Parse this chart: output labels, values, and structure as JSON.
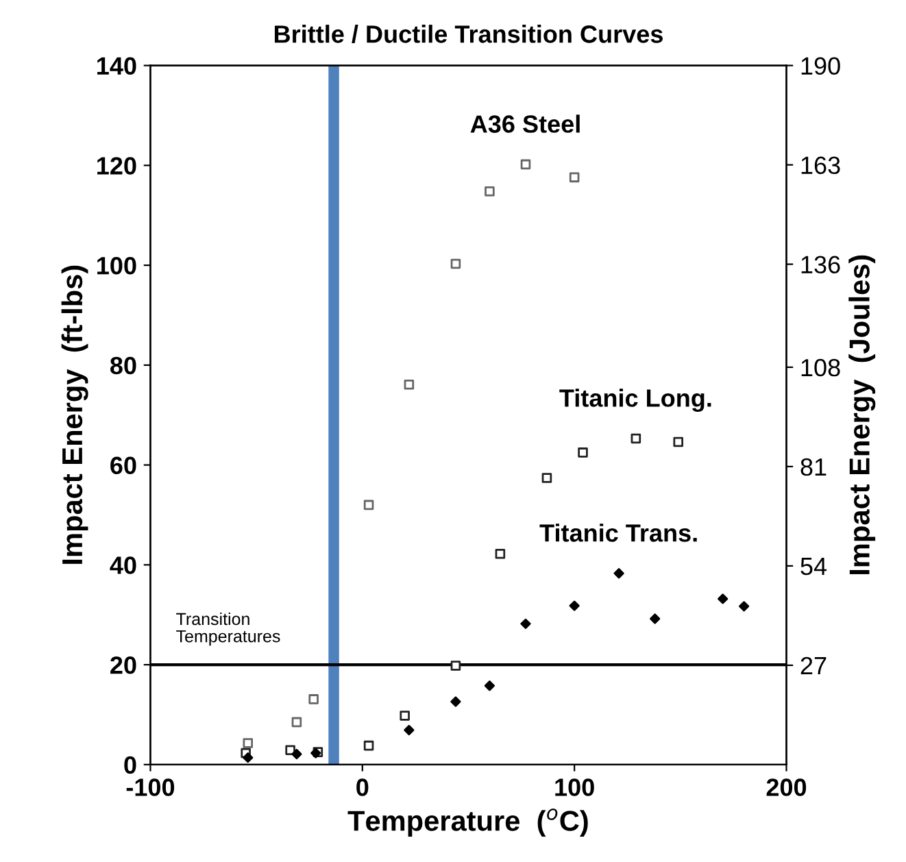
{
  "chart_data": {
    "type": "scatter",
    "title": "Brittle / Ductile Transition Curves",
    "xlabel": "Temperature  ($^{o}$C)",
    "ylabel": "Impact Energy  (ft-lbs)",
    "y2label": "Impact Energy  (Joules)",
    "xlim": [
      -100,
      200
    ],
    "xticks": [
      -100,
      0,
      100,
      200
    ],
    "ylim": [
      0,
      140
    ],
    "yticks": [
      0,
      20,
      40,
      60,
      80,
      100,
      120,
      140
    ],
    "y2lim": [
      0,
      190
    ],
    "y2ticks": [
      27,
      54,
      81,
      108,
      136,
      163,
      190
    ],
    "grid": false,
    "legend": false,
    "series": [
      {
        "name": "A36 Steel",
        "color": "#666666",
        "marker": "square",
        "x": [
          -54,
          -31,
          -23,
          3,
          22,
          44,
          60,
          77,
          100
        ],
        "values": [
          4.3,
          8.5,
          13.1,
          52,
          76.1,
          100.3,
          114.8,
          120.2,
          117.6
        ]
      },
      {
        "name": "Titanic Long.",
        "color": "#222222",
        "marker": "square",
        "x": [
          -55,
          -34,
          -21,
          3,
          20,
          44,
          65,
          87,
          104,
          129,
          149
        ],
        "values": [
          2.3,
          2.9,
          2.5,
          3.8,
          9.8,
          19.8,
          42.2,
          57.4,
          62.5,
          65.3,
          64.6
        ]
      },
      {
        "name": "Titanic Trans.",
        "color": "#000000",
        "marker": "diamond",
        "x": [
          -54,
          -31,
          -22,
          22,
          44,
          60,
          77,
          100,
          121,
          138,
          170,
          180
        ],
        "values": [
          1.4,
          2.1,
          2.3,
          6.9,
          12.6,
          15.8,
          28.2,
          31.8,
          38.3,
          29.2,
          33.2,
          31.7
        ]
      }
    ],
    "ref_lines": [
      {
        "axis": "y",
        "value": 20,
        "color": "#000000",
        "line_style": "solid"
      }
    ],
    "bands": [
      {
        "axis": "x",
        "from": -16,
        "to": -11,
        "color": "#4f81bd"
      }
    ],
    "annotations": [
      "Transition\nTemperatures"
    ]
  }
}
